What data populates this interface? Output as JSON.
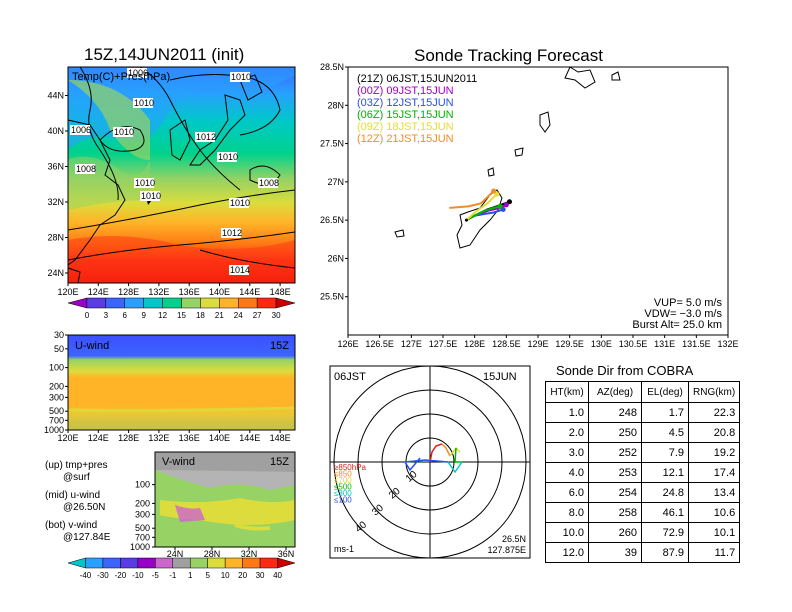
{
  "left": {
    "title": "15Z,14JUN2011 (init)",
    "map_field_label": "Temp(C)+Pres(hPa)",
    "lon_ticks": [
      "120E",
      "124E",
      "128E",
      "132E",
      "136E",
      "140E",
      "144E",
      "148E"
    ],
    "lat_ticks": [
      "24N",
      "28N",
      "32N",
      "36N",
      "40N",
      "44N"
    ],
    "pressure_labels": [
      "1006",
      "1010",
      "1010",
      "1006",
      "1010",
      "1012",
      "1008",
      "1010",
      "1010",
      "1008",
      "1010",
      "1010",
      "1012",
      "1014"
    ],
    "temp_colorbar": {
      "ticks": [
        "0",
        "3",
        "6",
        "9",
        "12",
        "15",
        "18",
        "21",
        "24",
        "27",
        "30"
      ],
      "colors": [
        "#9800c8",
        "#5a3ce6",
        "#3c64ff",
        "#28a0ff",
        "#00c8c8",
        "#00d28c",
        "#96d264",
        "#dcdc3c",
        "#ffb428",
        "#ff7814",
        "#ff2814",
        "#c80000"
      ]
    },
    "uwind": {
      "label": "U-wind",
      "time": "15Z",
      "p_ticks": [
        "30",
        "50",
        "100",
        "200",
        "300",
        "500",
        "700",
        "1000"
      ],
      "lon_ticks": [
        "120E",
        "124E",
        "128E",
        "132E",
        "136E",
        "140E",
        "144E",
        "148E"
      ]
    },
    "vwind": {
      "label": "V-wind",
      "time": "15Z",
      "p_ticks": [
        "100",
        "200",
        "300",
        "500",
        "700",
        "1000"
      ],
      "lat_ticks": [
        "24N",
        "28N",
        "32N",
        "36N"
      ]
    },
    "notes": [
      {
        "a": "(up) tmp+pres",
        "b": "@surf"
      },
      {
        "a": "(mid) u-wind",
        "b": "@26.50N"
      },
      {
        "a": "(bot) v-wind",
        "b": "@127.84E"
      }
    ],
    "wind_colorbar": {
      "ticks": [
        "-40",
        "-30",
        "-20",
        "-10",
        "-5",
        "-1",
        "1",
        "5",
        "10",
        "20",
        "30",
        "40"
      ],
      "colors": [
        "#00c8c8",
        "#28a0ff",
        "#3c64ff",
        "#5a3ce6",
        "#9800c8",
        "#cc66cc",
        "#a0a0a0",
        "#96d264",
        "#dcdc3c",
        "#ffb428",
        "#ff7814",
        "#ff2814",
        "#c80000"
      ]
    }
  },
  "track": {
    "title": "Sonde Tracking Forecast",
    "lat_ticks": [
      "25.5N",
      "26N",
      "26.5N",
      "27N",
      "27.5N",
      "28N",
      "28.5N"
    ],
    "lon_ticks": [
      "126E",
      "126.5E",
      "127E",
      "127.5E",
      "128E",
      "128.5E",
      "129E",
      "129.5E",
      "130E",
      "130.5E",
      "131E",
      "131.5E",
      "132E"
    ],
    "legend": [
      {
        "text": "(21Z) 06JST,15JUN2011",
        "color": "#000000"
      },
      {
        "text": "(00Z)  09JST,15JUN",
        "color": "#a000c8"
      },
      {
        "text": "(03Z)  12JST,15JUN",
        "color": "#2850e6"
      },
      {
        "text": "(06Z)  15JST,15JUN",
        "color": "#00b400"
      },
      {
        "text": "(09Z)  18JST,15JUN",
        "color": "#e6dc32"
      },
      {
        "text": "(12Z)  21JST,15JUN",
        "color": "#f08c28"
      }
    ],
    "params": [
      "VUP= 5.0 m/s",
      "VDW= −3.0 m/s",
      "Burst Alt= 25.0 km"
    ]
  },
  "polar": {
    "time": "06JST",
    "date": "15JUN",
    "ring_labels": [
      "10",
      "20",
      "30",
      "40"
    ],
    "unit": "ms-1",
    "loc_lat": "26.5N",
    "loc_lon": "127.875E",
    "key": [
      {
        "text": "≥850hPa",
        "color": "#dc1e1e"
      },
      {
        "text": "≤850",
        "color": "#f08c28"
      },
      {
        "text": "≤700",
        "color": "#dcdc32"
      },
      {
        "text": "≤500",
        "color": "#00b400"
      },
      {
        "text": "≤300",
        "color": "#00c8c8"
      },
      {
        "text": "≤100",
        "color": "#2850e6"
      }
    ]
  },
  "table": {
    "title": "Sonde Dir from COBRA",
    "headers": [
      "HT(km)",
      "AZ(deg)",
      "EL(deg)",
      "RNG(km)"
    ],
    "rows": [
      [
        "1.0",
        "248",
        "1.7",
        "22.3"
      ],
      [
        "2.0",
        "250",
        "4.5",
        "20.8"
      ],
      [
        "3.0",
        "252",
        "7.9",
        "19.2"
      ],
      [
        "4.0",
        "253",
        "12.1",
        "17.4"
      ],
      [
        "6.0",
        "254",
        "24.8",
        "13.4"
      ],
      [
        "8.0",
        "258",
        "46.1",
        "10.6"
      ],
      [
        "10.0",
        "260",
        "72.9",
        "10.1"
      ],
      [
        "12.0",
        "39",
        "87.9",
        "11.7"
      ]
    ]
  },
  "chart_data": [
    {
      "type": "heatmap",
      "title": "15Z,14JUN2011 (init)",
      "subtitle": "Temp(C)+Pres(hPa)",
      "x": [
        120,
        124,
        128,
        132,
        136,
        140,
        144,
        148
      ],
      "y": [
        24,
        28,
        32,
        36,
        40,
        44
      ],
      "xlim": [
        120,
        150
      ],
      "ylim": [
        22,
        48
      ],
      "isobars_hPa": [
        1006,
        1008,
        1010,
        1012,
        1014
      ]
    },
    {
      "type": "line",
      "title": "Sonde Tracking Forecast",
      "xlim": [
        126,
        132
      ],
      "ylim": [
        25,
        28.5
      ],
      "series": [
        {
          "name": "(21Z) 06JST,15JUN2011",
          "x": [
            127.87,
            128.05,
            128.2,
            128.35,
            128.55
          ],
          "y": [
            26.5,
            26.58,
            26.64,
            26.68,
            26.74
          ]
        },
        {
          "name": "(00Z) 09JST,15JUN",
          "x": [
            127.87,
            128.0,
            128.2,
            128.4,
            128.5
          ],
          "y": [
            26.5,
            26.56,
            26.62,
            26.66,
            26.7
          ]
        },
        {
          "name": "(03Z) 12JST,15JUN",
          "x": [
            127.87,
            127.95,
            128.15,
            128.3,
            128.45
          ],
          "y": [
            26.5,
            26.55,
            26.58,
            26.6,
            26.64
          ]
        },
        {
          "name": "(06Z) 15JST,15JUN",
          "x": [
            127.87,
            128.0,
            128.15,
            128.3,
            128.4
          ],
          "y": [
            26.5,
            26.56,
            26.62,
            26.66,
            26.68
          ]
        },
        {
          "name": "(09Z) 18JST,15JUN",
          "x": [
            127.87,
            128.0,
            128.2,
            128.3,
            128.35
          ],
          "y": [
            26.5,
            26.6,
            26.72,
            26.8,
            26.84
          ]
        },
        {
          "name": "(12Z) 21JST,15JUN",
          "x": [
            127.6,
            127.9,
            128.1,
            128.2,
            128.3
          ],
          "y": [
            26.66,
            26.68,
            26.72,
            26.8,
            26.88
          ]
        }
      ]
    },
    {
      "type": "table",
      "title": "Sonde Dir from COBRA",
      "columns": [
        "HT(km)",
        "AZ(deg)",
        "EL(deg)",
        "RNG(km)"
      ],
      "rows": [
        [
          1.0,
          248,
          1.7,
          22.3
        ],
        [
          2.0,
          250,
          4.5,
          20.8
        ],
        [
          3.0,
          252,
          7.9,
          19.2
        ],
        [
          4.0,
          253,
          12.1,
          17.4
        ],
        [
          6.0,
          254,
          24.8,
          13.4
        ],
        [
          8.0,
          258,
          46.1,
          10.6
        ],
        [
          10.0,
          260,
          72.9,
          10.1
        ],
        [
          12.0,
          39,
          87.9,
          11.7
        ]
      ]
    }
  ]
}
